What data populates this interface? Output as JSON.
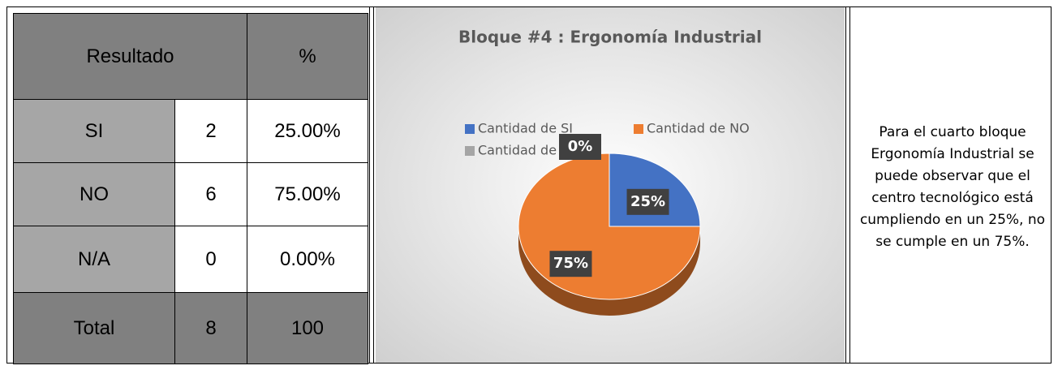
{
  "table": {
    "header": [
      "Resultado",
      "%"
    ],
    "rows": [
      [
        "SI",
        "2",
        "25.00%"
      ],
      [
        "NO",
        "6",
        "75.00%"
      ],
      [
        "N/A",
        "0",
        "0.00%"
      ],
      [
        "Total",
        "8",
        "100"
      ]
    ]
  },
  "chart_data": {
    "type": "pie",
    "title": "Bloque #4 : Ergonomía Industrial",
    "categories": [
      "Cantidad de SI",
      "Cantidad de NO",
      "Cantidad de N/A"
    ],
    "values": [
      25,
      75,
      0
    ],
    "value_labels": [
      "25%",
      "75%",
      "0%"
    ],
    "colors": [
      "#4472c4",
      "#ed7d31",
      "#a5a5a5"
    ]
  },
  "text": "Para el cuarto bloque Ergonomía Industrial se puede observar que el centro tecnológico está cumpliendo en un 25%, no se cumple en un 75%."
}
